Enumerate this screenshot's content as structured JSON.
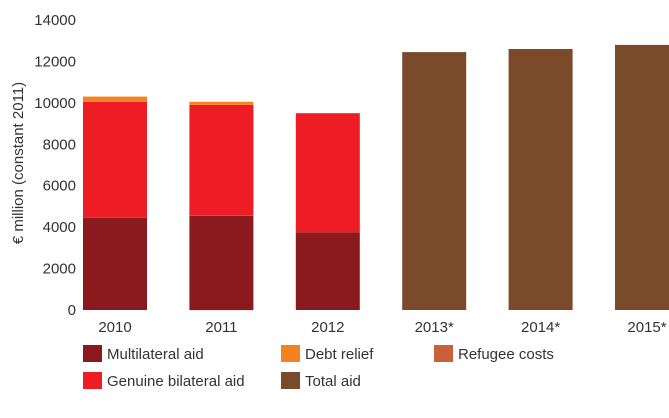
{
  "chart_data": {
    "type": "bar",
    "stacked": true,
    "title": "",
    "xlabel": "",
    "ylabel": "€ million (constant 2011)",
    "ylim": [
      0,
      14000
    ],
    "yticks": [
      0,
      2000,
      4000,
      6000,
      8000,
      10000,
      12000,
      14000
    ],
    "grid": false,
    "legend_position": "bottom",
    "categories": [
      "2010",
      "2011",
      "2012",
      "2013*",
      "2014*",
      "2015*"
    ],
    "series": [
      {
        "name": "Multilateral aid",
        "color": "#8b1a1f",
        "values": [
          4450,
          4550,
          3750,
          0,
          0,
          0
        ]
      },
      {
        "name": "Genuine bilateral aid",
        "color": "#ee1c25",
        "values": [
          5600,
          5350,
          5750,
          0,
          0,
          0
        ]
      },
      {
        "name": "Debt relief",
        "color": "#f58220",
        "values": [
          250,
          150,
          0,
          0,
          0,
          0
        ]
      },
      {
        "name": "Refugee costs",
        "color": "#c8603c",
        "values": [
          0,
          0,
          0,
          0,
          0,
          0
        ]
      },
      {
        "name": "Total aid",
        "color": "#7b4a2a",
        "values": [
          0,
          0,
          0,
          12450,
          12600,
          12800
        ]
      }
    ]
  }
}
